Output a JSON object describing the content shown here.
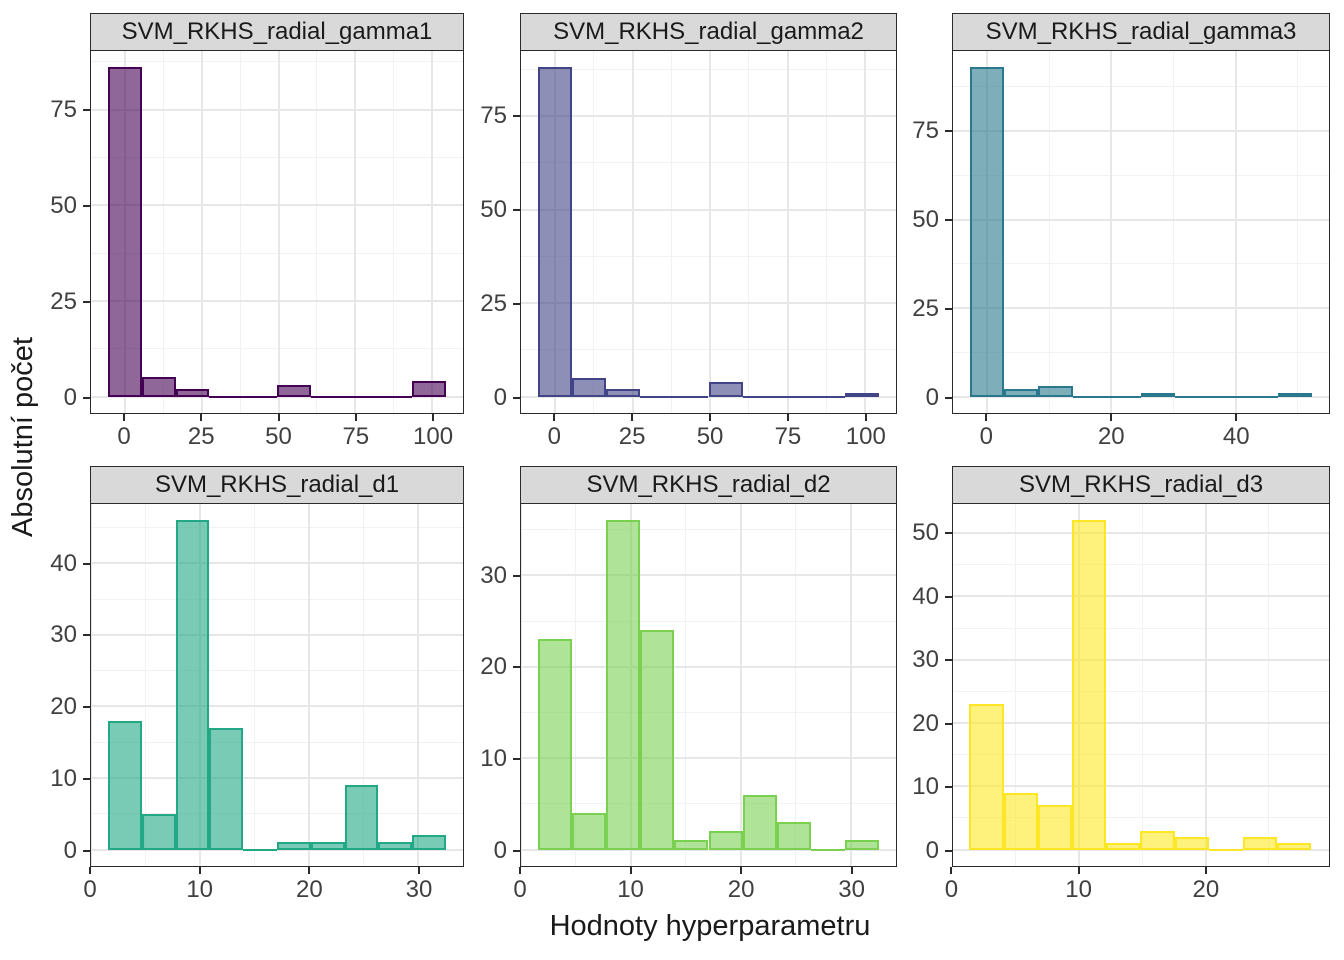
{
  "axes": {
    "ylabel": "Absolutní počet",
    "xlabel": "Hodnoty hyperparametru"
  },
  "style": {
    "strip_bg": "#d9d9d9",
    "panel_border": "#2b2b2b",
    "grid_major": "#e7e7e7",
    "grid_minor": "#f2f2f2",
    "tick_text": "#404040"
  },
  "chart_data": [
    {
      "type": "histogram",
      "title": "SVM_RKHS_radial_gamma1",
      "stroke": "#440154",
      "fill": "rgba(68,1,84,0.6)",
      "bin_start": -5.5,
      "bin_width": 11,
      "counts": [
        86,
        5,
        2,
        0,
        0,
        3,
        0,
        0,
        0,
        4
      ],
      "xlim": [
        -11,
        110
      ],
      "ylim": [
        -4.3,
        90.3
      ],
      "x_ticks": [
        0,
        25,
        50,
        75,
        100
      ],
      "x_minor": [
        12.5,
        37.5,
        62.5,
        87.5
      ],
      "y_ticks": [
        0,
        25,
        50,
        75
      ],
      "y_minor": [
        12.5,
        37.5,
        62.5,
        87.5
      ]
    },
    {
      "type": "histogram",
      "title": "SVM_RKHS_radial_gamma2",
      "stroke": "#414487",
      "fill": "rgba(65,68,135,0.6)",
      "bin_start": -5.5,
      "bin_width": 11,
      "counts": [
        88,
        5,
        2,
        0,
        0,
        4,
        0,
        0,
        0,
        1
      ],
      "xlim": [
        -11,
        110
      ],
      "ylim": [
        -4.4,
        92.4
      ],
      "x_ticks": [
        0,
        25,
        50,
        75,
        100
      ],
      "x_minor": [
        12.5,
        37.5,
        62.5,
        87.5
      ],
      "y_ticks": [
        0,
        25,
        50,
        75
      ],
      "y_minor": [
        12.5,
        37.5,
        62.5,
        87.5
      ]
    },
    {
      "type": "histogram",
      "title": "SVM_RKHS_radial_gamma3",
      "stroke": "#2A788E",
      "fill": "rgba(42,120,142,0.6)",
      "bin_start": -2.75,
      "bin_width": 5.5,
      "counts": [
        93,
        2,
        3,
        0,
        0,
        1,
        0,
        0,
        0,
        1
      ],
      "xlim": [
        -5.5,
        55
      ],
      "ylim": [
        -4.65,
        97.65
      ],
      "x_ticks": [
        0,
        20,
        40
      ],
      "x_minor": [
        10,
        30,
        50
      ],
      "y_ticks": [
        0,
        25,
        50,
        75
      ],
      "y_minor": [
        12.5,
        37.5,
        62.5,
        87.5
      ]
    },
    {
      "type": "histogram",
      "title": "SVM_RKHS_radial_d1",
      "stroke": "#22A884",
      "fill": "rgba(34,168,132,0.6)",
      "bin_start": 1.55,
      "bin_width": 3.1,
      "counts": [
        18,
        5,
        46,
        17,
        0,
        1,
        1,
        9,
        1,
        2
      ],
      "xlim": [
        0,
        34.1
      ],
      "ylim": [
        -2.3,
        48.3
      ],
      "x_ticks": [
        0,
        10,
        20,
        30
      ],
      "x_minor": [
        5,
        15,
        25
      ],
      "y_ticks": [
        0,
        10,
        20,
        30,
        40
      ],
      "y_minor": [
        5,
        15,
        25,
        35,
        45
      ]
    },
    {
      "type": "histogram",
      "title": "SVM_RKHS_radial_d2",
      "stroke": "#7AD151",
      "fill": "rgba(122,209,81,0.6)",
      "bin_start": 1.55,
      "bin_width": 3.1,
      "counts": [
        23,
        4,
        36,
        24,
        1,
        2,
        6,
        3,
        0,
        1
      ],
      "xlim": [
        0,
        34.1
      ],
      "ylim": [
        -1.8,
        37.8
      ],
      "x_ticks": [
        0,
        10,
        20,
        30
      ],
      "x_minor": [
        5,
        15,
        25
      ],
      "y_ticks": [
        0,
        10,
        20,
        30
      ],
      "y_minor": [
        5,
        15,
        25,
        35
      ]
    },
    {
      "type": "histogram",
      "title": "SVM_RKHS_radial_d3",
      "stroke": "#FDE725",
      "fill": "rgba(253,231,37,0.6)",
      "bin_start": 1.35,
      "bin_width": 2.7,
      "counts": [
        23,
        9,
        7,
        52,
        1,
        3,
        2,
        0,
        2,
        1
      ],
      "xlim": [
        0.05,
        29.75
      ],
      "ylim": [
        -2.6,
        54.6
      ],
      "x_ticks": [
        0,
        10,
        20
      ],
      "x_minor": [
        5,
        15,
        25
      ],
      "y_ticks": [
        0,
        10,
        20,
        30,
        40,
        50
      ],
      "y_minor": [
        5,
        15,
        25,
        35,
        45
      ]
    }
  ]
}
